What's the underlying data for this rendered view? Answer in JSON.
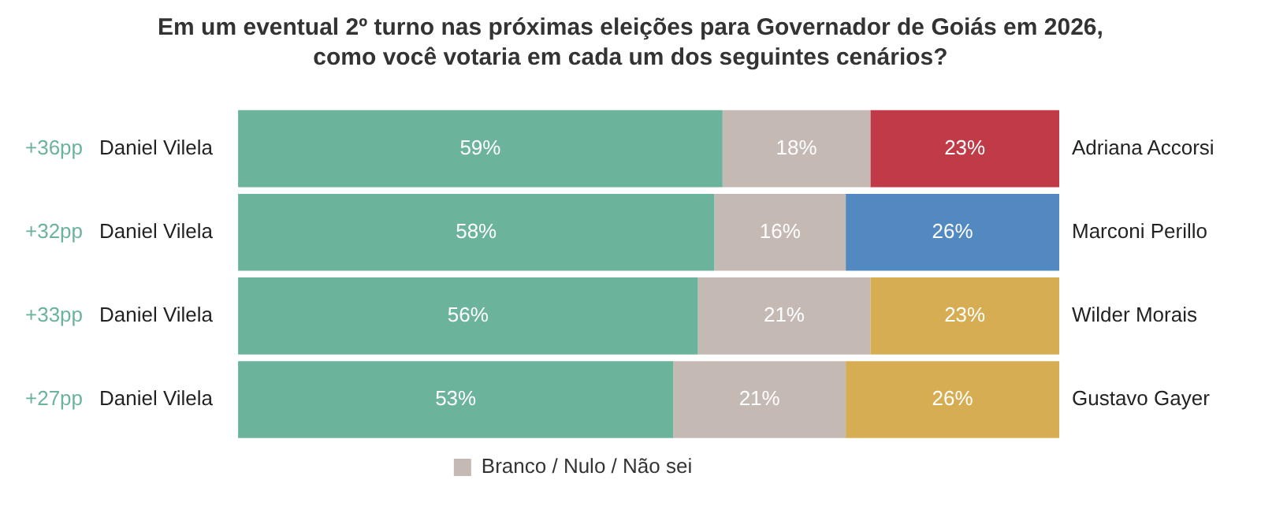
{
  "chart_data": {
    "type": "bar",
    "orientation": "horizontal",
    "stacked": true,
    "title": "Em um eventual 2º turno nas próximas eleições para Governador de Goiás em 2026, como você votaria em cada um dos seguintes cenários?",
    "categories": [
      "Daniel Vilela",
      "Daniel Vilela",
      "Daniel Vilela",
      "Daniel Vilela"
    ],
    "series": [
      {
        "color": "#6bb39a",
        "values": [
          59,
          58,
          56,
          53
        ],
        "value_labels": [
          "59%",
          "58%",
          "56%",
          "53%"
        ]
      },
      {
        "name": "Branco / Nulo / Não sei",
        "color": "#c4b9b3",
        "values": [
          18,
          16,
          21,
          21
        ],
        "value_labels": [
          "18%",
          "16%",
          "21%",
          "21%"
        ]
      },
      {
        "colors": [
          "#c13a48",
          "#5289c1",
          "#d6ad52",
          "#d6ad52"
        ],
        "values": [
          23,
          26,
          23,
          26
        ],
        "value_labels": [
          "23%",
          "26%",
          "23%",
          "26%"
        ]
      }
    ],
    "xlim": [
      0,
      100
    ],
    "tick_labels": "y",
    "legend": "bottom",
    "annotations": [
      "+36pp",
      "+32pp",
      "+33pp",
      "+27pp",
      "Adriana Accorsi",
      "Marconi Perillo",
      "Wilder Morais",
      "Gustavo Gayer"
    ]
  }
}
